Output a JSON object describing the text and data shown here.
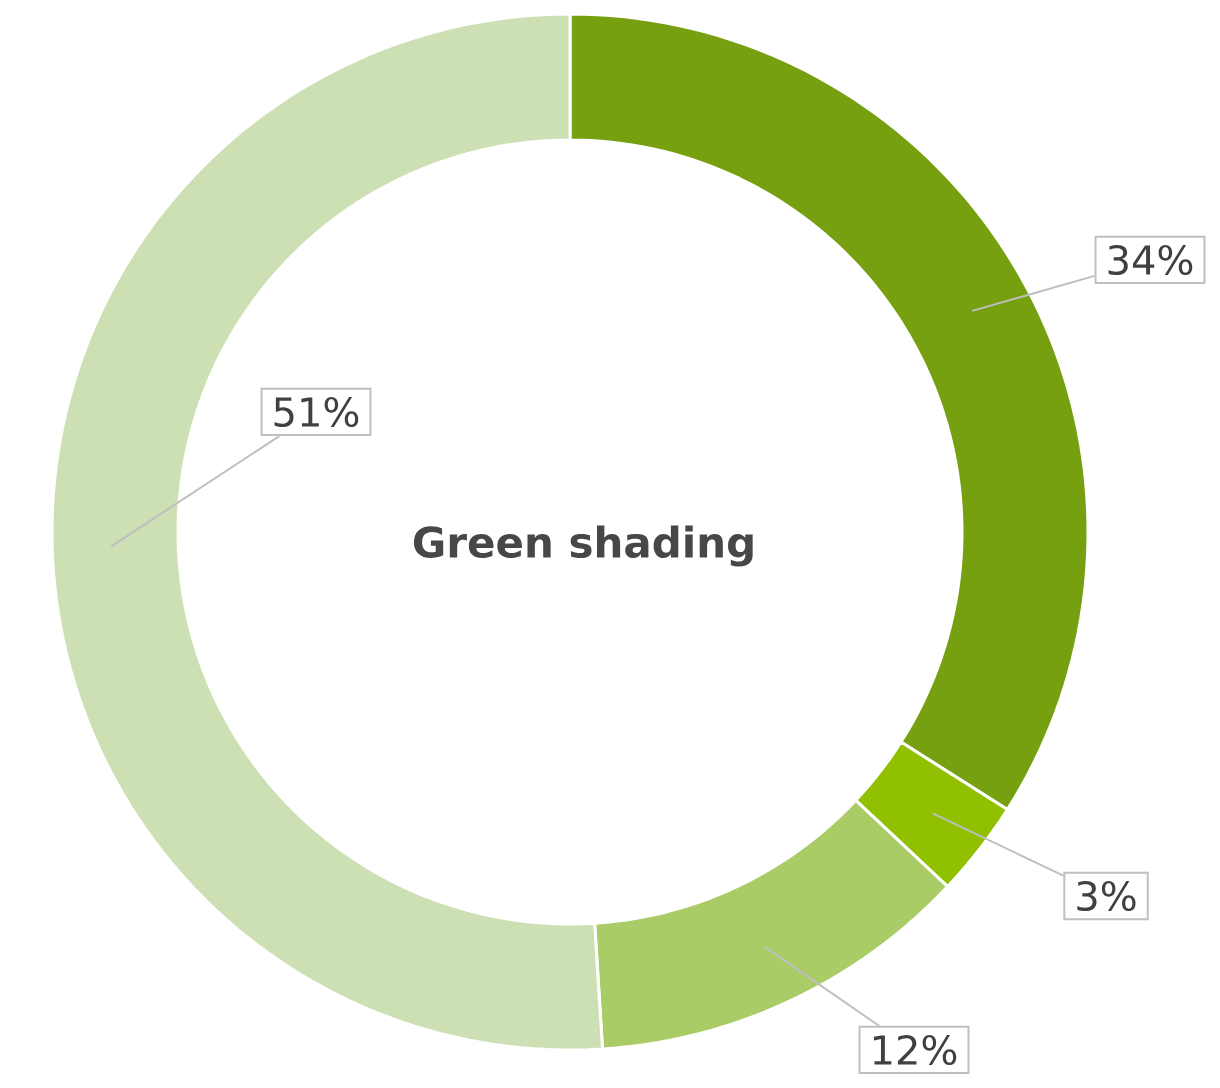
{
  "chart_data": {
    "type": "donut",
    "title": "Green shading",
    "categories": [
      null,
      null,
      null,
      null
    ],
    "values": [
      34,
      3,
      12,
      51
    ],
    "colors": [
      "#76a010",
      "#90c000",
      "#a9cc66",
      "#cde0b4"
    ],
    "value_labels": [
      "34%",
      "3%",
      "12%",
      "51%"
    ]
  }
}
